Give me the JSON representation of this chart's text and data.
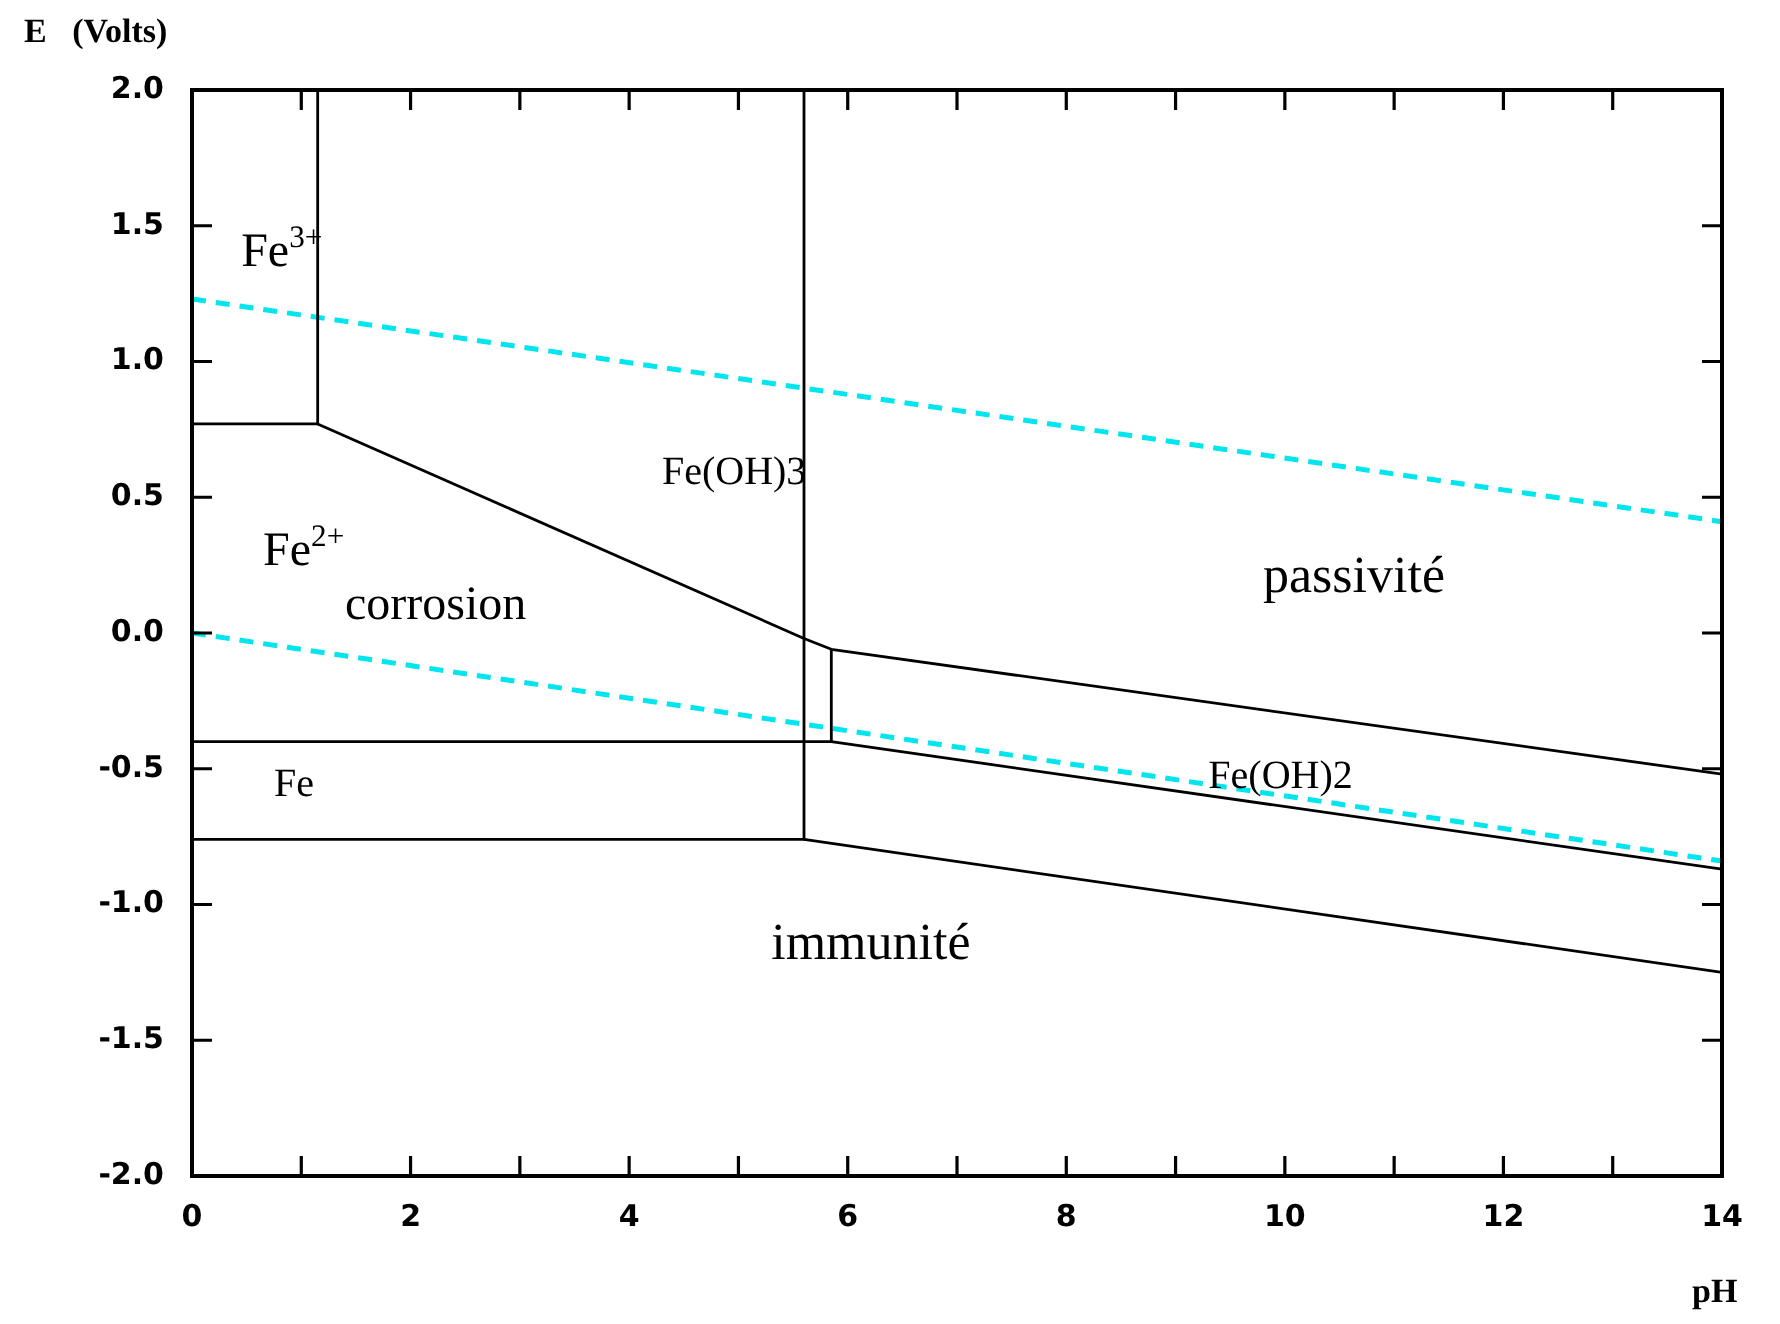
{
  "chart_data": {
    "type": "line",
    "xlabel": "pH",
    "ylabel": "E   (Volts)",
    "xlim": [
      0,
      14
    ],
    "ylim": [
      -2,
      2
    ],
    "xticks": [
      0,
      {
        "value": 1,
        "label": null
      },
      2,
      {
        "value": 3,
        "label": null
      },
      4,
      {
        "value": 5,
        "label": null
      },
      6,
      {
        "value": 7,
        "label": null
      },
      8,
      {
        "value": 9,
        "label": null
      },
      10,
      {
        "value": 11,
        "label": null
      },
      12,
      {
        "value": 13,
        "label": null
      },
      14
    ],
    "yticks": [
      {
        "value": 2,
        "label": "2.0"
      },
      {
        "value": 1.5,
        "label": "1.5"
      },
      {
        "value": 1,
        "label": "1.0"
      },
      {
        "value": 0.5,
        "label": "0.5"
      },
      {
        "value": 0,
        "label": "0.0"
      },
      {
        "value": -0.5,
        "label": "-0.5"
      },
      {
        "value": -1,
        "label": "-1.0"
      },
      {
        "value": -1.5,
        "label": "-1.5"
      },
      {
        "value": -2,
        "label": "-2.0"
      }
    ],
    "grid": false,
    "legend": false,
    "marker": "none",
    "series": [
      {
        "type": "line",
        "color": "#000000",
        "line_style": "solid",
        "x": [
          1.15,
          1.15
        ],
        "values": [
          2.0,
          0.77
        ]
      },
      {
        "type": "line",
        "color": "#000000",
        "line_style": "solid",
        "x": [
          0,
          1.15,
          5.6,
          5.85,
          14
        ],
        "values": [
          0.77,
          0.77,
          -0.02,
          -0.06,
          -0.52
        ]
      },
      {
        "type": "line",
        "color": "#000000",
        "line_style": "solid",
        "x": [
          5.6,
          5.6
        ],
        "values": [
          2.0,
          -0.76
        ]
      },
      {
        "type": "line",
        "color": "#000000",
        "line_style": "solid",
        "x": [
          0,
          5.6,
          5.85,
          14
        ],
        "values": [
          -0.4,
          -0.4,
          -0.4,
          -0.87
        ]
      },
      {
        "type": "line",
        "color": "#000000",
        "line_style": "solid",
        "x": [
          0,
          5.6,
          14
        ],
        "values": [
          -0.76,
          -0.76,
          -1.25
        ]
      },
      {
        "type": "line",
        "color": "#000000",
        "line_style": "solid",
        "x": [
          5.85,
          5.85
        ],
        "values": [
          -0.4,
          -0.06
        ]
      },
      {
        "type": "line",
        "color": "#00e5ee",
        "line_style": "dashed",
        "x": [
          0,
          14
        ],
        "values": [
          1.23,
          0.41
        ]
      },
      {
        "type": "line",
        "color": "#00e5ee",
        "line_style": "dashed",
        "x": [
          0,
          14
        ],
        "values": [
          0.0,
          -0.84
        ]
      }
    ],
    "annotations": [
      "Fe$^{3+}$",
      "Fe$^{2+}$",
      "corrosion",
      "Fe(OH)3",
      "passivité",
      "Fe(OH)2",
      "Fe",
      "immunité"
    ]
  }
}
